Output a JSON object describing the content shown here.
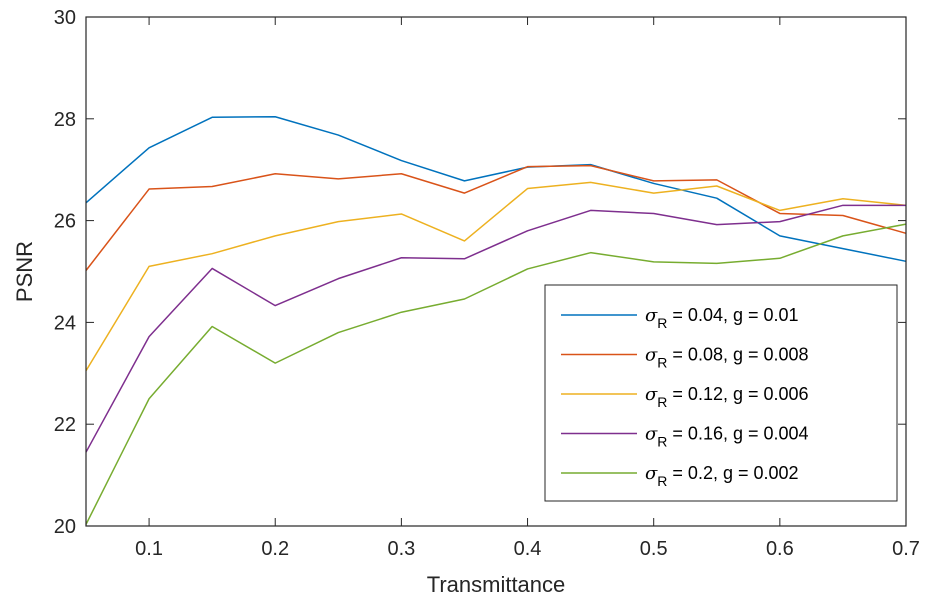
{
  "chart_data": {
    "type": "line",
    "title": "",
    "xlabel": "Transmittance",
    "ylabel": "PSNR",
    "xlim": [
      0.05,
      0.7
    ],
    "ylim": [
      20,
      30
    ],
    "xticks": [
      0.1,
      0.2,
      0.3,
      0.4,
      0.5,
      0.6,
      0.7
    ],
    "xtick_labels": [
      "0.1",
      "0.2",
      "0.3",
      "0.4",
      "0.5",
      "0.6",
      "0.7"
    ],
    "yticks": [
      20,
      22,
      24,
      26,
      28,
      30
    ],
    "ytick_labels": [
      "20",
      "22",
      "24",
      "26",
      "28",
      "30"
    ],
    "grid": false,
    "legend_position": "lower-right",
    "x": [
      0.05,
      0.1,
      0.15,
      0.2,
      0.25,
      0.3,
      0.35,
      0.4,
      0.45,
      0.5,
      0.55,
      0.6,
      0.65,
      0.7
    ],
    "series": [
      {
        "name": "σR = 0.04, g = 0.01",
        "legend_symbol": "σ",
        "legend_sub": "R",
        "legend_rest": " = 0.04, g = 0.01",
        "color": "#0072BD",
        "values": [
          26.35,
          27.43,
          28.03,
          28.04,
          27.68,
          27.18,
          26.78,
          27.05,
          27.1,
          26.73,
          26.44,
          25.7,
          25.45,
          25.2
        ]
      },
      {
        "name": "σR = 0.08, g = 0.008",
        "legend_symbol": "σ",
        "legend_sub": "R",
        "legend_rest": " = 0.08, g = 0.008",
        "color": "#D95319",
        "values": [
          25.02,
          26.62,
          26.67,
          26.92,
          26.82,
          26.92,
          26.54,
          27.06,
          27.08,
          26.78,
          26.8,
          26.14,
          26.1,
          25.75
        ]
      },
      {
        "name": "σR = 0.12, g = 0.006",
        "legend_symbol": "σ",
        "legend_sub": "R",
        "legend_rest": " = 0.12, g = 0.006",
        "color": "#EDB120",
        "values": [
          23.05,
          25.1,
          25.35,
          25.7,
          25.98,
          26.13,
          25.6,
          26.63,
          26.75,
          26.54,
          26.68,
          26.2,
          26.43,
          26.3
        ]
      },
      {
        "name": "σR = 0.16, g = 0.004",
        "legend_symbol": "σ",
        "legend_sub": "R",
        "legend_rest": " = 0.16, g = 0.004",
        "color": "#7E2F8E",
        "values": [
          21.45,
          23.72,
          25.06,
          24.33,
          24.86,
          25.27,
          25.25,
          25.8,
          26.2,
          26.14,
          25.92,
          25.98,
          26.3,
          26.3
        ]
      },
      {
        "name": "σR = 0.2, g = 0.002",
        "legend_symbol": "σ",
        "legend_sub": "R",
        "legend_rest": " = 0.2, g = 0.002",
        "color": "#77AC30",
        "values": [
          20.03,
          22.5,
          23.92,
          23.2,
          23.8,
          24.2,
          24.46,
          25.05,
          25.37,
          25.19,
          25.16,
          25.26,
          25.7,
          25.93
        ]
      }
    ]
  }
}
